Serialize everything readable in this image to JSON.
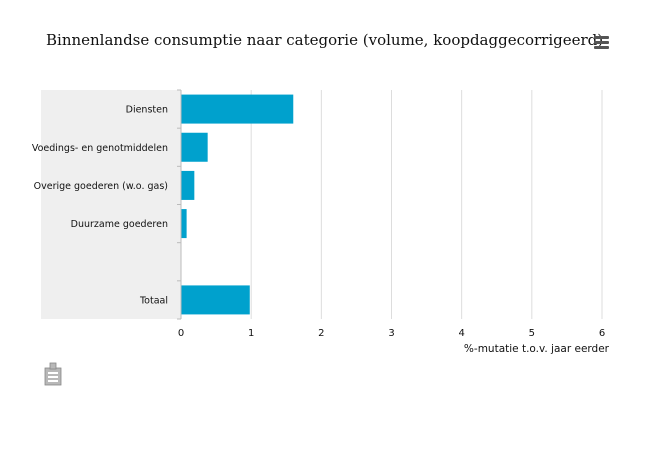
{
  "title": "Binnenlandse consumptie naar categorie (volume, koopdaggecorrigeerd)",
  "icons": {
    "menu": "hamburger-menu-icon",
    "logo": "cbs-logo-icon"
  },
  "colors": {
    "bar": "#00a1cd",
    "plot_band": "#efefef",
    "grid": "#dddddd"
  },
  "chart_data": {
    "type": "bar",
    "orientation": "horizontal",
    "title": "Binnenlandse consumptie naar categorie (volume, koopdaggecorrigeerd)",
    "categories": [
      "Diensten",
      "Voedings- en genotmiddelen",
      "Overige goederen (w.o. gas)",
      "Duurzame goederen",
      "",
      "Totaal"
    ],
    "values": [
      1.6,
      0.38,
      0.19,
      0.08,
      null,
      0.98
    ],
    "xlabel": "%-mutatie t.o.v. jaar eerder",
    "xlim": [
      0,
      6
    ],
    "xticks": [
      "0",
      "1",
      "2",
      "3",
      "4",
      "5",
      "6"
    ],
    "grid": true,
    "legend": "none"
  }
}
